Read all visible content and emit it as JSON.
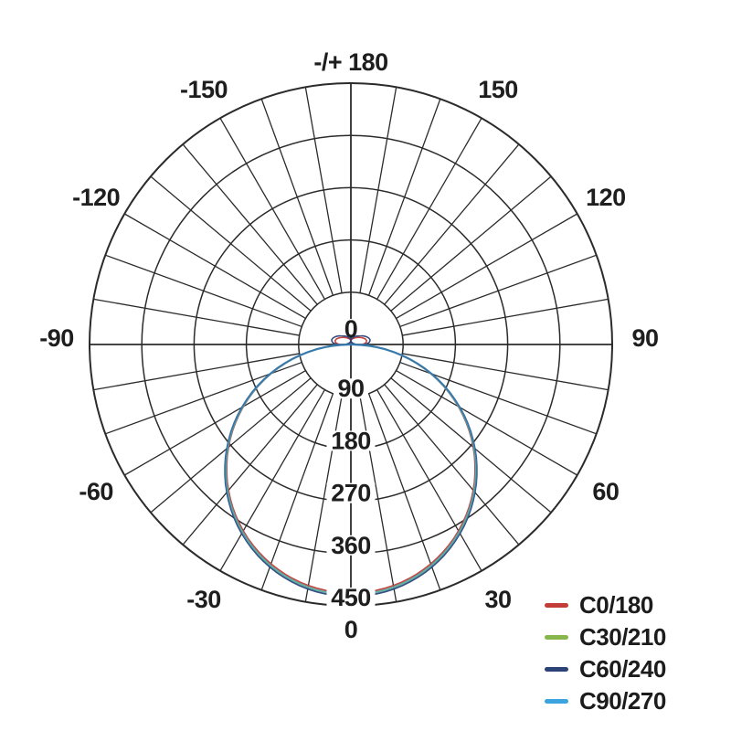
{
  "page": {
    "background": "#ffffff",
    "text_color": "#1e1e1e",
    "grid_color": "#2b2b2b"
  },
  "chart_data": {
    "type": "line",
    "subtype": "polar-photometric",
    "description": "Luminous intensity distribution curve (polar diagram)",
    "angular_unit": "degrees",
    "top_label": "-/+ 180",
    "bottom_label": "0",
    "angular_ticks": [
      {
        "label": "-/+ 180",
        "angle": 180
      },
      {
        "label": "150",
        "angle": 150
      },
      {
        "label": "120",
        "angle": 120
      },
      {
        "label": "90",
        "angle": 90
      },
      {
        "label": "60",
        "angle": 60
      },
      {
        "label": "30",
        "angle": 30
      },
      {
        "label": "0",
        "angle": 0
      },
      {
        "label": "-30",
        "angle": -30
      },
      {
        "label": "-60",
        "angle": -60
      },
      {
        "label": "-90",
        "angle": -90
      },
      {
        "label": "-120",
        "angle": -120
      },
      {
        "label": "-150",
        "angle": -150
      }
    ],
    "radial_ticks": [
      0,
      90,
      180,
      270,
      360,
      450
    ],
    "radial_max": 450,
    "grid": {
      "spoke_step_deg": 10,
      "ring_step": 90,
      "rings": 5,
      "color": "#2b2b2b",
      "legend_position": "bottom-right"
    },
    "lobe_shape": "I(gamma) ~= Imax * cos(gamma), gamma measured from nadir (0 at bottom)",
    "gamma_samples_deg": [
      -90,
      -75,
      -60,
      -45,
      -30,
      -15,
      0,
      15,
      30,
      45,
      60,
      75,
      90
    ],
    "series": [
      {
        "name": "C0/180",
        "color": "#c23c38",
        "main_lobe_max": 428,
        "back_lobe_max": 27,
        "values": [
          0,
          111,
          214,
          303,
          371,
          413,
          428,
          413,
          371,
          303,
          214,
          111,
          0
        ]
      },
      {
        "name": "C30/210",
        "color": "#87b74a",
        "main_lobe_max": 431,
        "back_lobe_max": 0,
        "values": [
          0,
          112,
          216,
          305,
          373,
          416,
          431,
          416,
          373,
          305,
          216,
          112,
          0
        ]
      },
      {
        "name": "C60/240",
        "color": "#2c4377",
        "main_lobe_max": 434,
        "back_lobe_max": 33,
        "values": [
          0,
          112,
          217,
          307,
          376,
          419,
          434,
          419,
          376,
          307,
          217,
          112,
          0
        ]
      },
      {
        "name": "C90/270",
        "color": "#3ba4df",
        "main_lobe_max": 431,
        "back_lobe_max": 0,
        "values": [
          0,
          112,
          216,
          305,
          373,
          416,
          431,
          416,
          373,
          305,
          216,
          112,
          0
        ]
      }
    ]
  }
}
